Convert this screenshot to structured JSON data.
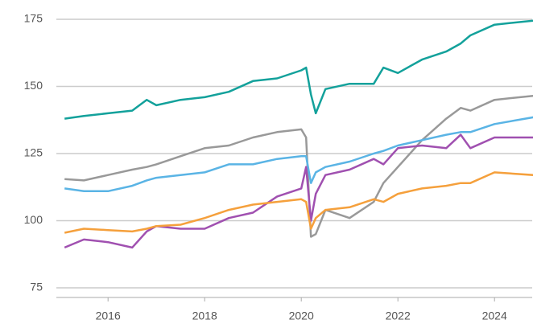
{
  "chart_data": {
    "type": "line",
    "x": [
      2015.1,
      2015.5,
      2016,
      2016.5,
      2016.8,
      2017,
      2017.5,
      2018,
      2018.5,
      2019,
      2019.5,
      2020,
      2020.1,
      2020.2,
      2020.3,
      2020.5,
      2021,
      2021.5,
      2021.7,
      2022,
      2022.5,
      2023,
      2023.3,
      2023.5,
      2024,
      2024.8
    ],
    "series": [
      {
        "color": "#13a19b",
        "values": [
          138,
          139,
          140,
          141,
          145,
          143,
          145,
          146,
          148,
          152,
          153,
          156,
          157,
          147,
          140,
          149,
          151,
          151,
          157,
          155,
          160,
          163,
          166,
          169,
          173,
          174.5
        ]
      },
      {
        "color": "#999999",
        "values": [
          115.5,
          115,
          117,
          119,
          120,
          121,
          124,
          127,
          128,
          131,
          133,
          134,
          131,
          94,
          95,
          104,
          101,
          107,
          114,
          120,
          130,
          138,
          142,
          141,
          145,
          146.5
        ]
      },
      {
        "color": "#5ab4e5",
        "values": [
          112,
          111,
          111,
          113,
          115,
          116,
          117,
          118,
          121,
          121,
          123,
          124,
          124,
          114,
          118,
          120,
          122,
          125,
          126,
          128,
          130,
          132,
          133,
          133,
          136,
          138.5
        ]
      },
      {
        "color": "#a050b0",
        "values": [
          90,
          93,
          92,
          90,
          96,
          98,
          97,
          97,
          101,
          103,
          109,
          112,
          120,
          100,
          110,
          117,
          119,
          123,
          121,
          127,
          128,
          127,
          132,
          127,
          131,
          131
        ]
      },
      {
        "color": "#f5a03c",
        "values": [
          95.5,
          97,
          96.5,
          96,
          97,
          98,
          98.5,
          101,
          104,
          106,
          107,
          108,
          107,
          97,
          101,
          104,
          105,
          108,
          107,
          110,
          112,
          113,
          114,
          114,
          118,
          117
        ]
      }
    ],
    "xlim": [
      2014.93,
      2024.78
    ],
    "xticks": [
      2016,
      2018,
      2020,
      2022,
      2024
    ],
    "ylim": [
      75,
      175
    ],
    "yticks": [
      75,
      100,
      125,
      150,
      175
    ],
    "grid": true
  }
}
